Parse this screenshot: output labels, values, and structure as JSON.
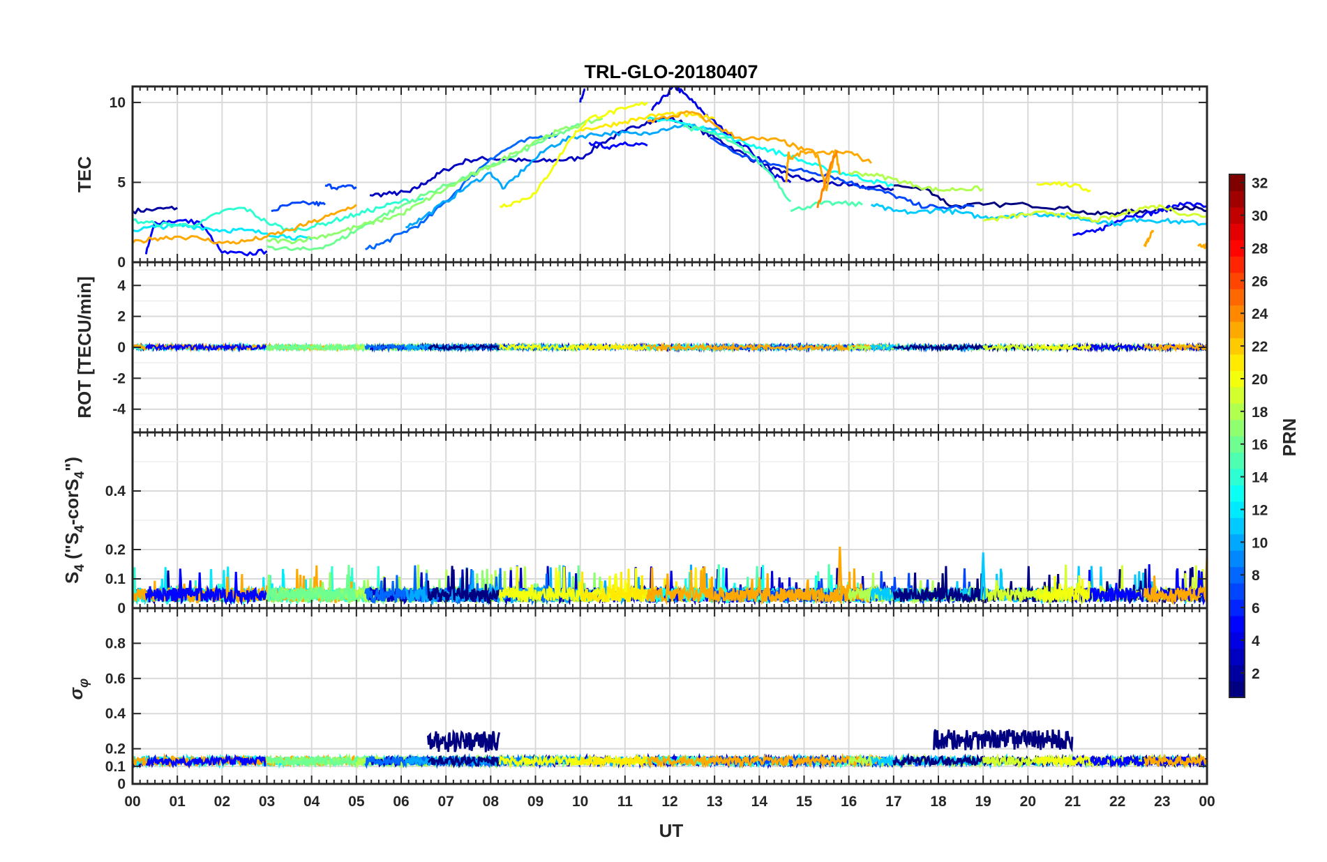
{
  "chart_data": {
    "type": "line",
    "title": "TRL-GLO-20180407",
    "xlabel": "UT",
    "x_tick_labels": [
      "00",
      "01",
      "02",
      "03",
      "04",
      "05",
      "06",
      "07",
      "08",
      "09",
      "10",
      "11",
      "12",
      "13",
      "14",
      "15",
      "16",
      "17",
      "18",
      "19",
      "20",
      "21",
      "22",
      "23",
      "00"
    ],
    "xlim": [
      0,
      24
    ],
    "colorbar": {
      "label": "PRN",
      "range": [
        1,
        32
      ],
      "tick_labels": [
        "2",
        "4",
        "6",
        "8",
        "10",
        "12",
        "14",
        "16",
        "18",
        "20",
        "22",
        "24",
        "26",
        "28",
        "30",
        "32"
      ]
    },
    "panels": [
      {
        "id": "tec",
        "ylabel": "TEC",
        "ylim": [
          0,
          11
        ],
        "yticks": [
          "0",
          "5",
          "10"
        ],
        "series": [
          {
            "prn": 2,
            "t": [
              0,
              0.5,
              1.0
            ],
            "v": [
              3.2,
              3.3,
              3.4
            ]
          },
          {
            "prn": 3,
            "t": [
              5.3,
              5.8,
              6.2,
              6.6,
              7.0,
              7.5,
              8.0,
              8.5,
              9.0,
              9.5,
              10.0,
              10.5,
              11.0,
              11.5,
              12.0,
              12.5,
              13.0,
              13.5,
              14.0,
              14.5,
              15.0,
              15.5,
              16.0,
              16.5,
              17.0
            ],
            "v": [
              4.2,
              4.3,
              4.4,
              5.1,
              5.8,
              6.4,
              6.5,
              6.4,
              6.3,
              6.4,
              6.5,
              7.5,
              8.2,
              8.8,
              9.0,
              8.5,
              7.8,
              7.0,
              6.2,
              5.6,
              5.2,
              5.0,
              4.8,
              4.7,
              4.6
            ]
          },
          {
            "prn": 1,
            "t": [
              17.0,
              17.8,
              18.3,
              19.0,
              20.0,
              20.8,
              21.5,
              22.0,
              22.5,
              23.0,
              23.5,
              24.0
            ],
            "v": [
              4.8,
              4.5,
              3.5,
              3.6,
              3.6,
              3.4,
              3.0,
              3.1,
              3.2,
              3.3,
              3.5,
              3.2
            ]
          },
          {
            "prn": 4,
            "t": [
              10.0,
              10.05,
              10.1
            ],
            "v": [
              10.0,
              10.4,
              10.8
            ]
          },
          {
            "prn": 4,
            "t": [
              11.6,
              11.9,
              12.1,
              12.3,
              12.6,
              12.9,
              13.3,
              13.8,
              14.3,
              14.7
            ],
            "v": [
              9.5,
              10.4,
              11.0,
              10.6,
              9.8,
              9.0,
              8.0,
              7.0,
              5.5,
              5.0
            ]
          },
          {
            "prn": 5,
            "t": [
              0.3,
              0.5,
              1.0,
              1.5,
              2.0,
              2.5,
              3.0
            ],
            "v": [
              0.5,
              2.5,
              2.6,
              2.5,
              0.6,
              0.5,
              0.7
            ]
          },
          {
            "prn": 5,
            "t": [
              10.2,
              10.6,
              11.0,
              11.5
            ],
            "v": [
              7.5,
              7.2,
              7.5,
              7.3
            ]
          },
          {
            "prn": 5,
            "t": [
              21.0,
              21.5,
              21.8,
              22.2,
              22.6,
              23.0,
              23.4,
              24.0
            ],
            "v": [
              1.7,
              1.9,
              2.3,
              2.9,
              3.0,
              3.2,
              3.7,
              3.5
            ]
          },
          {
            "prn": 7,
            "t": [
              3.1,
              3.5,
              4.0,
              4.3
            ],
            "v": [
              3.2,
              3.6,
              3.7,
              3.6
            ]
          },
          {
            "prn": 7,
            "t": [
              4.3,
              4.6,
              5.0
            ],
            "v": [
              4.8,
              4.7,
              4.7
            ]
          },
          {
            "prn": 7,
            "t": [
              12.9,
              13.5,
              14.0,
              14.5,
              15.0,
              15.5,
              16.0,
              16.5,
              17.0,
              17.5,
              18.0,
              18.8
            ],
            "v": [
              7.8,
              6.8,
              6.3,
              6.0,
              5.7,
              5.5,
              5.0,
              4.6,
              4.2,
              3.6,
              3.4,
              3.5
            ]
          },
          {
            "prn": 8,
            "t": [
              5.2,
              5.6,
              6.0,
              6.5,
              7.0,
              7.5,
              8.0,
              8.5,
              9.0,
              9.5
            ],
            "v": [
              0.8,
              1.2,
              1.8,
              2.5,
              3.8,
              5.2,
              6.5,
              7.3,
              7.8,
              8.0
            ]
          },
          {
            "prn": 10,
            "t": [
              6.1,
              6.5,
              7.0,
              7.5,
              8.0,
              8.3
            ],
            "v": [
              2.2,
              2.8,
              3.8,
              4.8,
              5.6,
              4.6
            ]
          },
          {
            "prn": 10,
            "t": [
              8.3,
              8.8,
              9.3,
              9.8,
              10.3,
              10.8,
              11.3,
              11.8,
              12.3,
              12.8,
              13.2
            ],
            "v": [
              4.6,
              6.0,
              7.2,
              7.8,
              8.0,
              8.1,
              8.0,
              8.3,
              8.6,
              8.4,
              8.2
            ]
          },
          {
            "prn": 11,
            "t": [
              16.5,
              17.0,
              17.5,
              18.0,
              18.5,
              19.0,
              19.5,
              20.0,
              20.5,
              21.0,
              21.5,
              22.0,
              22.5,
              23.0,
              23.5,
              24.0
            ],
            "v": [
              3.6,
              3.2,
              3.1,
              3.3,
              3.1,
              2.8,
              2.9,
              3.0,
              3.0,
              2.8,
              2.6,
              2.4,
              2.7,
              2.6,
              2.5,
              2.4
            ]
          },
          {
            "prn": 12,
            "t": [
              0,
              0.5,
              1.0,
              1.5,
              2.0,
              2.5,
              3.0,
              3.5,
              4.0
            ],
            "v": [
              2.0,
              2.2,
              2.3,
              2.2,
              2.0,
              2.0,
              1.8,
              1.6,
              1.4
            ]
          },
          {
            "prn": 13,
            "t": [
              11.5,
              12.0,
              12.5,
              13.0,
              13.5,
              14.0,
              14.5,
              15.0,
              15.5,
              16.0,
              16.5,
              17.0
            ],
            "v": [
              9.0,
              8.9,
              8.5,
              8.2,
              7.6,
              7.2,
              6.8,
              6.3,
              5.8,
              5.5,
              5.1,
              4.8
            ]
          },
          {
            "prn": 14,
            "t": [
              0,
              0.5,
              1.0,
              1.5,
              2.0,
              2.5,
              3.0,
              3.5,
              4.0,
              4.5,
              5.0,
              5.5,
              6.0,
              6.5
            ],
            "v": [
              2.6,
              2.4,
              2.3,
              2.4,
              3.2,
              3.4,
              2.5,
              2.0,
              2.2,
              2.6,
              3.0,
              3.4,
              3.8,
              4.0
            ]
          },
          {
            "prn": 15,
            "t": [
              12.3,
              12.8,
              13.3,
              13.8,
              14.3,
              14.7
            ],
            "v": [
              8.5,
              8.2,
              7.6,
              6.8,
              5.4,
              3.8
            ]
          },
          {
            "prn": 15,
            "t": [
              14.7,
              15.2,
              15.7,
              16.3
            ],
            "v": [
              3.2,
              3.6,
              3.7,
              3.6
            ]
          },
          {
            "prn": 16,
            "t": [
              3.0,
              3.5,
              4.0,
              4.5,
              5.0,
              5.5,
              6.0,
              6.5,
              7.0,
              7.5,
              8.0,
              8.5,
              9.0,
              9.5,
              10.0
            ],
            "v": [
              1.0,
              0.8,
              0.8,
              1.2,
              2.0,
              2.8,
              3.5,
              4.2,
              4.8,
              5.4,
              6.0,
              6.6,
              7.4,
              8.0,
              8.6
            ]
          },
          {
            "prn": 17,
            "t": [
              3.0,
              3.5,
              4.0,
              4.5,
              5.0,
              5.5,
              6.0,
              6.5,
              7.0,
              7.5,
              8.0,
              8.5,
              9.0,
              9.5,
              10.0,
              10.5
            ],
            "v": [
              1.4,
              1.3,
              1.5,
              1.8,
              2.2,
              2.6,
              3.0,
              3.8,
              4.6,
              5.3,
              6.0,
              6.8,
              7.6,
              8.2,
              8.6,
              9.0
            ]
          },
          {
            "prn": 18,
            "t": [
              16.0,
              16.5,
              17.0,
              17.5,
              18.0,
              18.5,
              19.0
            ],
            "v": [
              5.6,
              5.5,
              5.2,
              4.8,
              4.5,
              4.6,
              4.6
            ]
          },
          {
            "prn": 19,
            "t": [
              19.0,
              19.5,
              20.0,
              20.5,
              21.0,
              21.5,
              22.0,
              22.5,
              23.0,
              23.5,
              24.0
            ],
            "v": [
              2.6,
              2.8,
              3.0,
              3.1,
              2.9,
              2.6,
              2.9,
              3.4,
              3.5,
              3.0,
              2.9
            ]
          },
          {
            "prn": 20,
            "t": [
              8.2,
              8.6,
              9.0,
              9.4,
              9.8,
              10.2,
              10.6,
              11.0,
              11.5
            ],
            "v": [
              3.5,
              3.8,
              4.3,
              6.0,
              7.8,
              9.0,
              9.3,
              9.6,
              10.0
            ]
          },
          {
            "prn": 20,
            "t": [
              20.2,
              20.6,
              21.0,
              21.4
            ],
            "v": [
              4.9,
              5.0,
              4.8,
              4.5
            ]
          },
          {
            "prn": 21,
            "t": [
              10.0,
              10.5,
              11.0,
              11.5,
              12.0,
              12.5,
              13.0
            ],
            "v": [
              8.3,
              8.5,
              8.8,
              9.1,
              9.3,
              9.2,
              9.0
            ]
          },
          {
            "prn": 23,
            "t": [
              0,
              0.5,
              1.0,
              1.5,
              2.0,
              2.5,
              3.0,
              3.5,
              4.0,
              4.5,
              5.0
            ],
            "v": [
              1.2,
              1.5,
              1.6,
              1.5,
              1.2,
              1.3,
              1.6,
              2.0,
              2.5,
              3.0,
              3.6
            ]
          },
          {
            "prn": 23,
            "t": [
              11.5,
              12.0,
              12.5,
              13.0,
              13.5,
              14.0,
              14.5,
              15.0,
              15.5,
              16.0,
              16.5
            ],
            "v": [
              8.8,
              9.1,
              9.4,
              8.6,
              7.8,
              7.7,
              7.6,
              7.0,
              6.8,
              6.9,
              6.2
            ]
          },
          {
            "prn": 23,
            "t": [
              14.6,
              14.65,
              14.7,
              15.0,
              15.3,
              15.5,
              15.7,
              15.8
            ],
            "v": [
              5.0,
              6.8,
              6.5,
              6.9,
              6.7,
              4.5,
              7.0,
              5.5
            ]
          },
          {
            "prn": 24,
            "t": [
              15.3,
              15.45,
              15.6,
              15.75
            ],
            "v": [
              3.4,
              4.8,
              6.2,
              7.0
            ]
          },
          {
            "prn": 23,
            "t": [
              22.6,
              22.7,
              22.8
            ],
            "v": [
              1.0,
              1.5,
              2.0
            ]
          },
          {
            "prn": 23,
            "t": [
              23.8,
              24.0
            ],
            "v": [
              1.0,
              1.0
            ]
          }
        ]
      },
      {
        "id": "rot",
        "ylabel": "ROT [TECU/min]",
        "ylim": [
          -5.5,
          5.5
        ],
        "yticks": [
          "-4",
          "-2",
          "0",
          "2",
          "4"
        ],
        "noise_amplitude": 0.15
      },
      {
        "id": "s4",
        "ylabel_main": "S",
        "ylabel_sub": "4",
        "ylabel_rest": " (\"S",
        "ylabel_sub2": "4",
        "ylabel_rest2": "-corS",
        "ylabel_sub3": "4",
        "ylabel_end": "\")",
        "ylim": [
          0,
          0.6
        ],
        "yticks": [
          "0",
          "0.1",
          "0.2",
          "0.4"
        ],
        "typical_level": 0.05,
        "peak_values": [
          {
            "prn": 23,
            "t": 15.8,
            "v": 0.21
          },
          {
            "prn": 11,
            "t": 19.0,
            "v": 0.19
          },
          {
            "prn": 23,
            "t": 24.0,
            "v": 0.18
          }
        ]
      },
      {
        "id": "sigma",
        "ylabel": "σ",
        "ylabel_sub": "φ",
        "ylim": [
          0,
          1
        ],
        "yticks": [
          "0",
          "0.1",
          "0.2",
          "0.4",
          "0.6",
          "0.8"
        ],
        "typical_level": 0.13,
        "enhanced": [
          {
            "prn": 1,
            "from": 6.6,
            "to": 8.2,
            "level": 0.24
          },
          {
            "prn": 1,
            "from": 17.9,
            "to": 21.0,
            "level": 0.25
          }
        ]
      }
    ],
    "prn_windows": [
      {
        "prn": 2,
        "from": 0,
        "to": 1.0
      },
      {
        "prn": 14,
        "from": 0,
        "to": 6.5
      },
      {
        "prn": 12,
        "from": 0,
        "to": 4.0
      },
      {
        "prn": 23,
        "from": 0,
        "to": 5.0
      },
      {
        "prn": 5,
        "from": 0.3,
        "to": 3.0
      },
      {
        "prn": 17,
        "from": 3.0,
        "to": 10.5
      },
      {
        "prn": 16,
        "from": 3.0,
        "to": 10.0
      },
      {
        "prn": 18,
        "from": 5.0,
        "to": 9.0
      },
      {
        "prn": 3,
        "from": 5.3,
        "to": 17.0
      },
      {
        "prn": 8,
        "from": 5.2,
        "to": 9.5
      },
      {
        "prn": 10,
        "from": 6.1,
        "to": 13.2
      },
      {
        "prn": 1,
        "from": 6.6,
        "to": 8.2
      },
      {
        "prn": 20,
        "from": 8.2,
        "to": 11.5
      },
      {
        "prn": 21,
        "from": 10.0,
        "to": 13.0
      },
      {
        "prn": 4,
        "from": 11.6,
        "to": 14.7
      },
      {
        "prn": 13,
        "from": 11.5,
        "to": 17.0
      },
      {
        "prn": 15,
        "from": 12.3,
        "to": 16.3
      },
      {
        "prn": 7,
        "from": 12.9,
        "to": 18.8
      },
      {
        "prn": 23,
        "from": 11.5,
        "to": 16.8
      },
      {
        "prn": 18,
        "from": 16.0,
        "to": 19.0
      },
      {
        "prn": 11,
        "from": 16.5,
        "to": 24.0
      },
      {
        "prn": 1,
        "from": 17.0,
        "to": 24.0
      },
      {
        "prn": 19,
        "from": 19.0,
        "to": 24.0
      },
      {
        "prn": 5,
        "from": 21.0,
        "to": 24.0
      },
      {
        "prn": 20,
        "from": 20.2,
        "to": 21.4
      },
      {
        "prn": 23,
        "from": 22.6,
        "to": 24.0
      }
    ]
  }
}
